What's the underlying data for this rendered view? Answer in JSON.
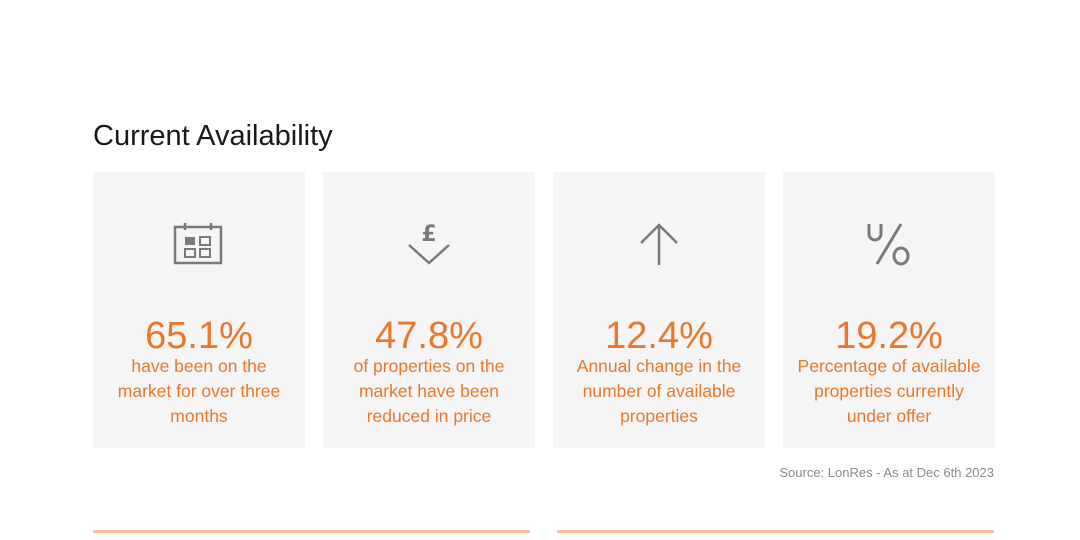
{
  "section": {
    "title": "Current Availability"
  },
  "cards": [
    {
      "icon": "calendar-icon",
      "value": "65.1%",
      "description": "have been on the market for over three months"
    },
    {
      "icon": "pound-down-icon",
      "value": "47.8%",
      "description": "of properties on the market have been reduced in price"
    },
    {
      "icon": "arrow-up-icon",
      "value": "12.4%",
      "description": "Annual change in the number of available properties"
    },
    {
      "icon": "under-offer-percent-icon",
      "value": "19.2%",
      "description": "Percentage of available properties currently under offer"
    }
  ],
  "source": "Source: LonRes - As at Dec 6th 2023",
  "colors": {
    "accent": "#e8782c",
    "card_background": "#f5f5f5",
    "icon": "#7a7a7a",
    "rule": "#f6c2a0"
  }
}
